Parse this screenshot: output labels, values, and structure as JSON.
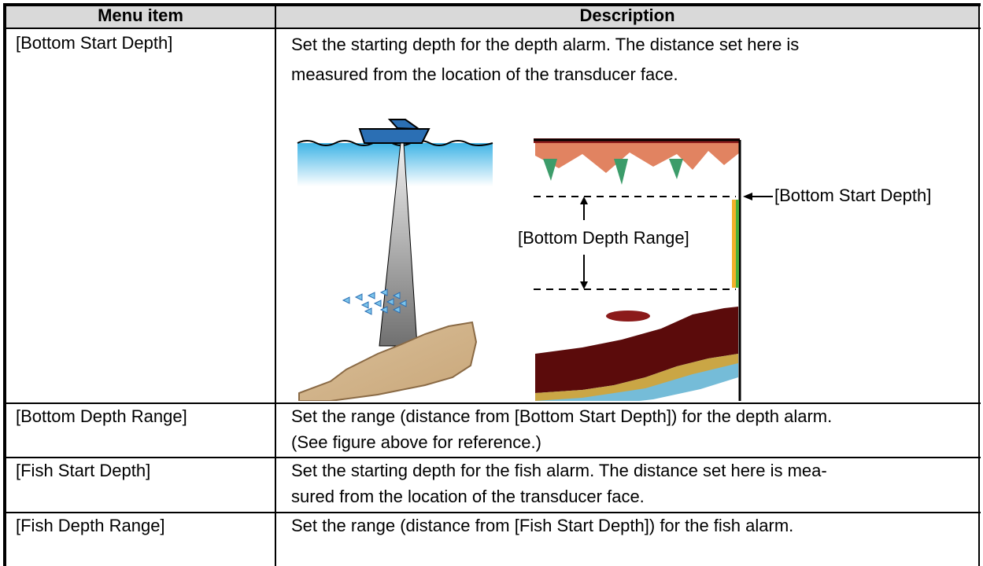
{
  "table": {
    "headers": [
      "Menu item",
      "Description"
    ],
    "rows": [
      [
        "[Bottom Start Depth]",
        [
          "Set the starting depth for the depth alarm. The distance set here is",
          "measured from the location of the transducer face."
        ]
      ],
      [
        "[Bottom Depth Range]",
        [
          "Set the range (distance from [Bottom Start Depth]) for the depth alarm.",
          "(See figure above for reference.)"
        ]
      ],
      [
        "[Fish Start Depth]",
        [
          "Set the starting depth for the fish alarm. The distance set here is mea-",
          "sured from the location of the transducer face."
        ]
      ],
      [
        "[Fish Depth Range]",
        [
          "Set the range (distance from [Fish Start Depth]) for the fish alarm."
        ]
      ]
    ]
  },
  "figure": {
    "labels": [
      "[Bottom Start Depth]",
      "[Bottom Depth Range]"
    ]
  }
}
